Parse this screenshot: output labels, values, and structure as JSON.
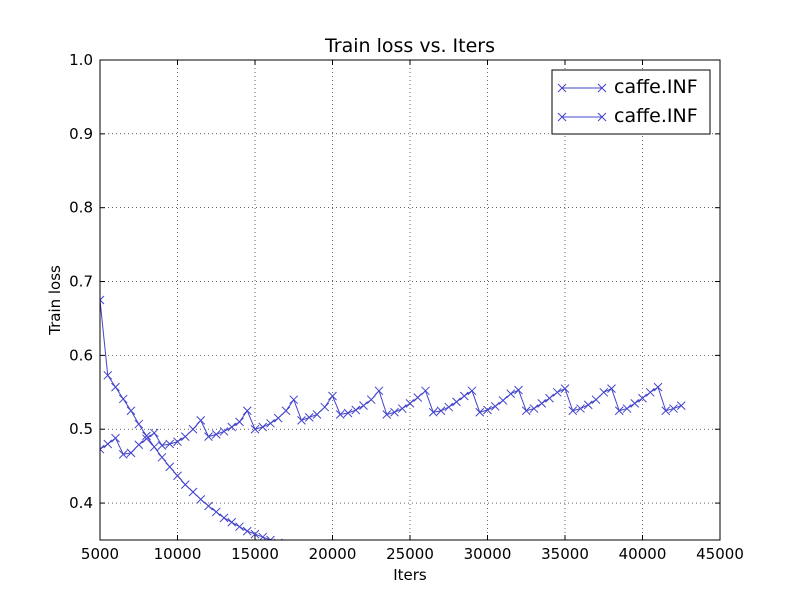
{
  "chart_data": {
    "type": "line",
    "title": "Train loss  vs. Iters",
    "xlabel": "Iters",
    "ylabel": "Train loss",
    "xlim": [
      5000,
      45000
    ],
    "ylim": [
      0.35,
      1.0
    ],
    "xticks": [
      5000,
      10000,
      15000,
      20000,
      25000,
      30000,
      35000,
      40000,
      45000
    ],
    "yticks": [
      0.4,
      0.5,
      0.6,
      0.7,
      0.8,
      0.9,
      1.0
    ],
    "grid": true,
    "grid_style": "dotted",
    "legend_position": "top-right",
    "marker": "x",
    "color": "#4444cc",
    "series": [
      {
        "name": "caffe.INF",
        "x": [
          5000,
          5500,
          6000,
          6500,
          7000,
          7500,
          8000,
          8500,
          9000,
          9500,
          10000,
          10500,
          11000,
          11500,
          12000,
          12500,
          13000,
          13500,
          14000,
          14500,
          15000,
          15500,
          16000,
          16500,
          17000,
          17500,
          18000,
          18500,
          19000,
          19500,
          20000,
          20500,
          21000,
          21500,
          22000,
          22500,
          23000,
          23500,
          24000,
          24500,
          25000,
          25500,
          26000,
          26500,
          27000,
          27500,
          28000,
          28500,
          29000,
          29500,
          30000,
          30500,
          31000,
          31500,
          32000,
          32500,
          33000,
          33500,
          34000,
          34500,
          35000,
          35500,
          36000,
          36500,
          37000,
          37500,
          38000,
          38500,
          39000,
          39500,
          40000,
          40500,
          41000,
          41500,
          42000,
          42500
        ],
        "values": [
          0.473,
          0.48,
          0.488,
          0.466,
          0.468,
          0.479,
          0.487,
          0.495,
          0.478,
          0.48,
          0.483,
          0.49,
          0.5,
          0.512,
          0.49,
          0.493,
          0.497,
          0.503,
          0.51,
          0.525,
          0.5,
          0.503,
          0.508,
          0.515,
          0.525,
          0.54,
          0.512,
          0.516,
          0.52,
          0.53,
          0.545,
          0.52,
          0.522,
          0.526,
          0.532,
          0.54,
          0.552,
          0.52,
          0.523,
          0.528,
          0.535,
          0.543,
          0.552,
          0.523,
          0.525,
          0.53,
          0.537,
          0.545,
          0.552,
          0.523,
          0.526,
          0.531,
          0.539,
          0.548,
          0.553,
          0.525,
          0.528,
          0.535,
          0.542,
          0.55,
          0.555,
          0.525,
          0.528,
          0.533,
          0.54,
          0.55,
          0.555,
          0.525,
          0.528,
          0.535,
          0.542,
          0.55,
          0.557,
          0.525,
          0.528,
          0.532
        ]
      },
      {
        "name": "caffe.INF",
        "x": [
          5000,
          5500,
          6000,
          6500,
          7000,
          7500,
          8000,
          8500,
          9000,
          9500,
          10000,
          10500,
          11000,
          11500,
          12000,
          12500,
          13000,
          13500,
          14000,
          14500,
          15000,
          15500,
          16000,
          16500,
          17000
        ],
        "values": [
          0.675,
          0.573,
          0.557,
          0.541,
          0.525,
          0.507,
          0.491,
          0.476,
          0.462,
          0.449,
          0.437,
          0.425,
          0.415,
          0.405,
          0.396,
          0.388,
          0.38,
          0.374,
          0.368,
          0.362,
          0.358,
          0.354,
          0.35,
          0.346,
          0.343
        ]
      }
    ]
  }
}
